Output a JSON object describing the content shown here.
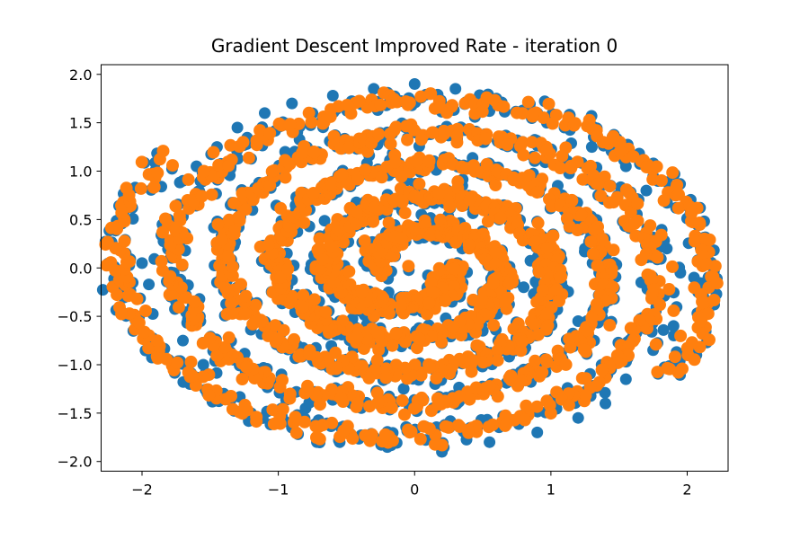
{
  "chart_data": {
    "type": "scatter",
    "title": "Gradient Descent Improved Rate - iteration 0",
    "xlabel": "",
    "ylabel": "",
    "xlim": [
      -2.3,
      2.3
    ],
    "ylim": [
      -2.1,
      2.1
    ],
    "x_ticks": [
      -2,
      -1,
      0,
      1,
      2
    ],
    "x_tick_labels": [
      "−2",
      "−1",
      "0",
      "1",
      "2"
    ],
    "y_ticks": [
      -2.0,
      -1.5,
      -1.0,
      -0.5,
      0.0,
      0.5,
      1.0,
      1.5,
      2.0
    ],
    "y_tick_labels": [
      "−2.0",
      "−1.5",
      "−1.0",
      "−0.5",
      "0.0",
      "0.5",
      "1.0",
      "1.5",
      "2.0"
    ],
    "grid": false,
    "series": [
      {
        "color": "#1f77b4",
        "marker": "circle",
        "points": [
          [
            -2.13,
            0.15
          ],
          [
            -1.95,
            -0.17
          ],
          [
            -2.0,
            0.05
          ],
          [
            -1.85,
            0.45
          ],
          [
            -1.7,
            0.9
          ],
          [
            -1.6,
            1.05
          ],
          [
            -1.45,
            1.25
          ],
          [
            -1.3,
            1.45
          ],
          [
            -1.1,
            1.6
          ],
          [
            -0.9,
            1.7
          ],
          [
            -0.6,
            1.78
          ],
          [
            -0.3,
            1.85
          ],
          [
            0.0,
            1.9
          ],
          [
            0.3,
            1.85
          ],
          [
            0.6,
            1.75
          ],
          [
            0.9,
            1.6
          ],
          [
            1.1,
            1.45
          ],
          [
            1.3,
            1.25
          ],
          [
            1.55,
            1.05
          ],
          [
            1.7,
            0.8
          ],
          [
            1.85,
            0.2
          ],
          [
            1.95,
            -0.05
          ],
          [
            2.05,
            -0.1
          ],
          [
            2.08,
            -0.25
          ],
          [
            1.9,
            -0.6
          ],
          [
            1.75,
            -0.85
          ],
          [
            1.55,
            -1.15
          ],
          [
            1.4,
            -1.4
          ],
          [
            1.2,
            -1.55
          ],
          [
            0.9,
            -1.7
          ],
          [
            0.55,
            -1.8
          ],
          [
            0.2,
            -1.9
          ],
          [
            -0.2,
            -1.85
          ],
          [
            -0.55,
            -1.8
          ],
          [
            -0.9,
            -1.65
          ],
          [
            -1.2,
            -1.5
          ],
          [
            -1.4,
            -1.3
          ],
          [
            -1.55,
            -1.0
          ],
          [
            -1.7,
            -0.75
          ],
          [
            -1.75,
            -0.35
          ],
          [
            -0.25,
            0.03
          ],
          [
            -0.1,
            -0.3
          ],
          [
            0.2,
            -0.15
          ],
          [
            0.35,
            0.2
          ],
          [
            0.05,
            0.55
          ],
          [
            -0.4,
            0.45
          ],
          [
            -0.6,
            0.1
          ],
          [
            -0.55,
            -0.55
          ],
          [
            0.0,
            -0.75
          ],
          [
            0.5,
            -0.65
          ],
          [
            0.8,
            -0.2
          ],
          [
            0.75,
            0.45
          ],
          [
            0.35,
            0.85
          ],
          [
            -0.25,
            0.95
          ],
          [
            -0.85,
            0.7
          ],
          [
            -1.05,
            0.15
          ],
          [
            -1.0,
            -0.6
          ],
          [
            -0.55,
            -1.05
          ],
          [
            0.15,
            -1.2
          ],
          [
            0.8,
            -1.05
          ],
          [
            1.2,
            -0.55
          ],
          [
            1.25,
            0.2
          ],
          [
            1.05,
            0.85
          ],
          [
            0.5,
            1.3
          ],
          [
            -0.2,
            1.4
          ],
          [
            -0.95,
            1.2
          ],
          [
            -1.35,
            0.65
          ],
          [
            -1.45,
            -0.15
          ],
          [
            -1.3,
            -0.95
          ],
          [
            -0.8,
            -1.45
          ]
        ]
      },
      {
        "color": "#ff7f0e",
        "marker": "circle",
        "points": []
      }
    ],
    "spiral": {
      "start_angle_deg": 0,
      "turns": 2.6,
      "max_radius_x": 2.0,
      "max_radius_y": 1.8,
      "arm_count": 2
    }
  }
}
